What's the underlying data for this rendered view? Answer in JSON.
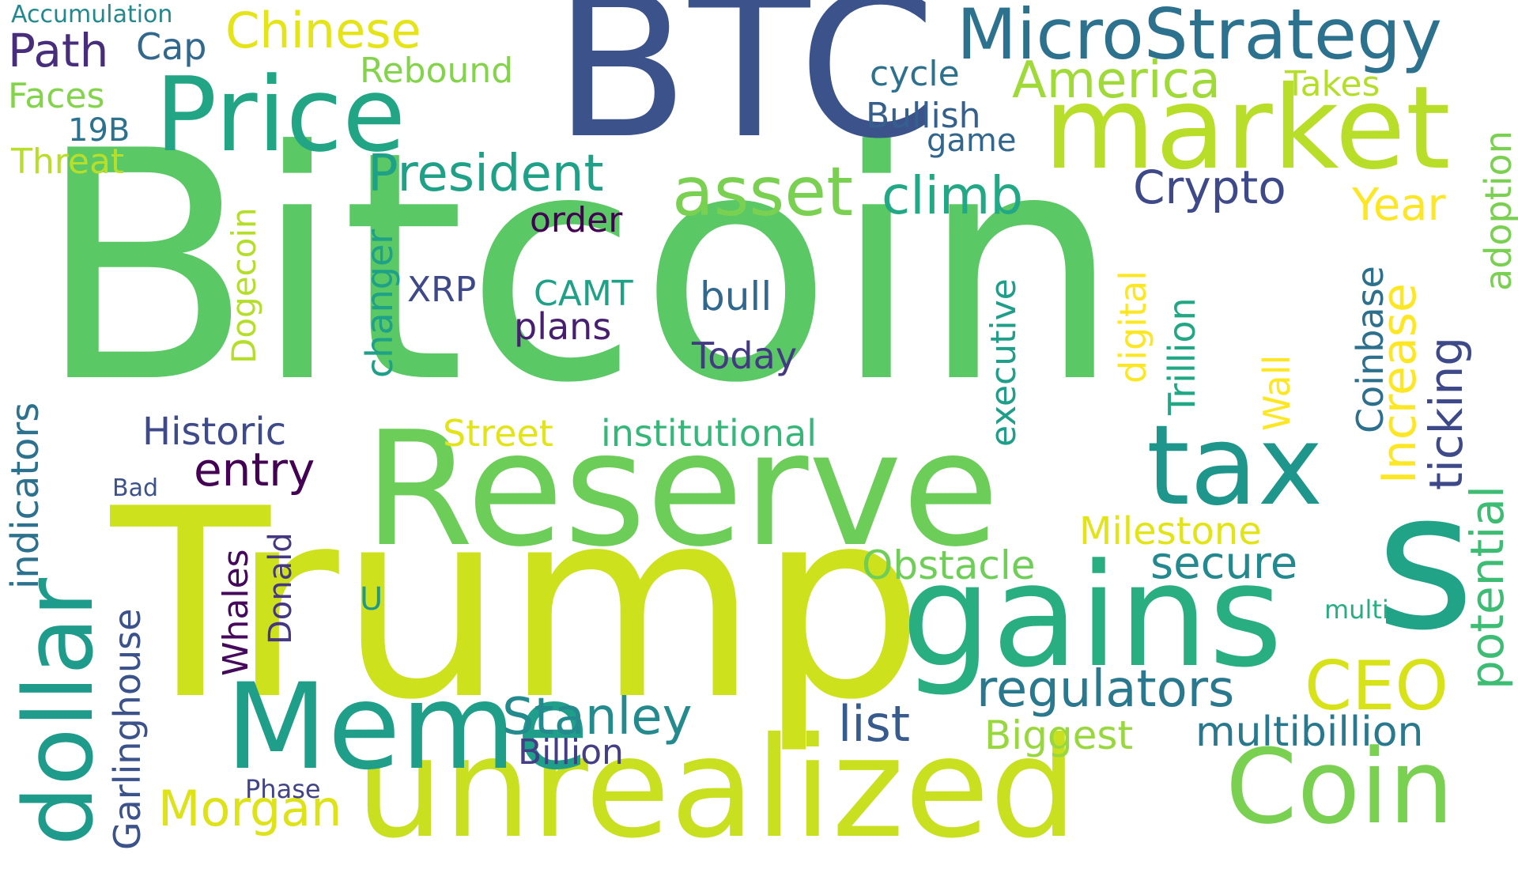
{
  "words": [
    {
      "text": "Bitcoin",
      "color": "#5ac864"
    },
    {
      "text": "Trump",
      "color": "#cde11d"
    },
    {
      "text": "BTC",
      "color": "#3b528b"
    },
    {
      "text": "Reserve",
      "color": "#6cce59"
    },
    {
      "text": "gains",
      "color": "#28ae80"
    },
    {
      "text": "s",
      "color": "#20a386"
    },
    {
      "text": "unrealized",
      "color": "#c8e020"
    },
    {
      "text": "Meme",
      "color": "#1f9e89"
    },
    {
      "text": "dollar",
      "color": "#1e9b8a"
    },
    {
      "text": "market",
      "color": "#b8de29"
    },
    {
      "text": "Price",
      "color": "#21a585"
    },
    {
      "text": "tax",
      "color": "#1f968b"
    },
    {
      "text": "Coin",
      "color": "#7ad151"
    },
    {
      "text": "MicroStrategy",
      "color": "#2c728e"
    },
    {
      "text": "asset",
      "color": "#7ad151"
    },
    {
      "text": "climb",
      "color": "#22a884"
    },
    {
      "text": "America",
      "color": "#a0da39"
    },
    {
      "text": "President",
      "color": "#1fa188"
    },
    {
      "text": "Crypto",
      "color": "#3e4989"
    },
    {
      "text": "regulators",
      "color": "#2a788e"
    },
    {
      "text": "CEO",
      "color": "#d8e219"
    },
    {
      "text": "Stanley",
      "color": "#238a8d"
    },
    {
      "text": "secure",
      "color": "#23898e"
    },
    {
      "text": "Obstacle",
      "color": "#6ece58"
    },
    {
      "text": "Morgan",
      "color": "#dde318"
    },
    {
      "text": "multibillion",
      "color": "#29798e"
    },
    {
      "text": "list",
      "color": "#375b8d"
    },
    {
      "text": "Biggest",
      "color": "#98d83e"
    },
    {
      "text": "Milestone",
      "color": "#e2e418"
    },
    {
      "text": "entry",
      "color": "#440154"
    },
    {
      "text": "Historic",
      "color": "#3e4a89"
    },
    {
      "text": "institutional",
      "color": "#35b779"
    },
    {
      "text": "Street",
      "color": "#e2e418"
    },
    {
      "text": "Path",
      "color": "#472d7b"
    },
    {
      "text": "Chinese",
      "color": "#e5e419"
    },
    {
      "text": "Rebound",
      "color": "#84d44b"
    },
    {
      "text": "cycle",
      "color": "#2c728e"
    },
    {
      "text": "Bullish",
      "color": "#355f8d"
    },
    {
      "text": "game",
      "color": "#31668e"
    },
    {
      "text": "Takes",
      "color": "#b5de2b"
    },
    {
      "text": "Year",
      "color": "#fde725"
    },
    {
      "text": "order",
      "color": "#440154"
    },
    {
      "text": "XRP",
      "color": "#3e4989"
    },
    {
      "text": "CAMT",
      "color": "#1fa187"
    },
    {
      "text": "bull",
      "color": "#31688e"
    },
    {
      "text": "plans",
      "color": "#481f70"
    },
    {
      "text": "Today",
      "color": "#443a83"
    },
    {
      "text": "Billion",
      "color": "#433e85"
    },
    {
      "text": "Phase",
      "color": "#414487"
    },
    {
      "text": "Bad",
      "color": "#3b528b"
    },
    {
      "text": "U",
      "color": "#1f988b"
    },
    {
      "text": "multi",
      "color": "#27ad81"
    },
    {
      "text": "Accumulation",
      "color": "#23888e"
    },
    {
      "text": "Cap",
      "color": "#31688e"
    },
    {
      "text": "Faces",
      "color": "#84d44b"
    },
    {
      "text": "19B",
      "color": "#2c728e"
    },
    {
      "text": "Threat",
      "color": "#b8de29"
    },
    {
      "text": "indicators",
      "color": "#2c728e"
    },
    {
      "text": "Garlinghouse",
      "color": "#3b528b"
    },
    {
      "text": "Whales",
      "color": "#46085c"
    },
    {
      "text": "Donald",
      "color": "#453781"
    },
    {
      "text": "Dogecoin",
      "color": "#b5de2b"
    },
    {
      "text": "changer",
      "color": "#1fa088"
    },
    {
      "text": "executive",
      "color": "#1f9e89"
    },
    {
      "text": "digital",
      "color": "#fde725"
    },
    {
      "text": "Trillion",
      "color": "#22a785"
    },
    {
      "text": "Wall",
      "color": "#fde725"
    },
    {
      "text": "Coinbase",
      "color": "#2d708e"
    },
    {
      "text": "Increase",
      "color": "#fde725"
    },
    {
      "text": "ticking",
      "color": "#3e4989"
    },
    {
      "text": "potential",
      "color": "#3dbc74"
    },
    {
      "text": "adoption",
      "color": "#7ad151"
    }
  ]
}
